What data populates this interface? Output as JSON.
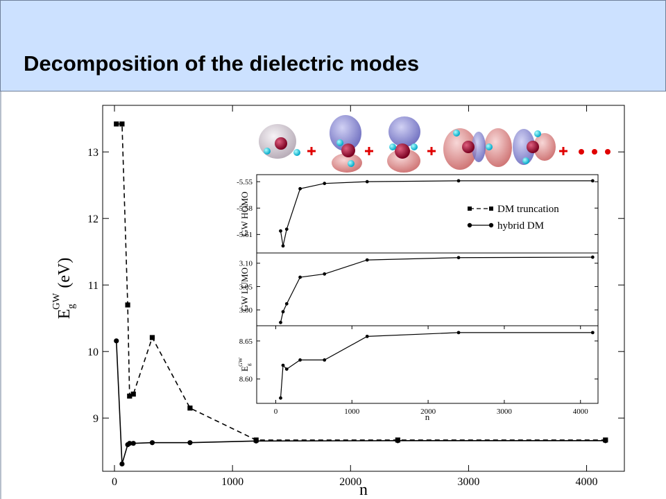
{
  "header": {
    "title": "Decomposition of the dielectric modes"
  },
  "chart_data": [
    {
      "type": "line",
      "xlabel": "n",
      "ylabel": {
        "text": "E",
        "sub": "g",
        "sup": "GW",
        "unit": "(eV)"
      },
      "x": [
        16,
        64,
        112,
        128,
        160,
        320,
        640,
        1200,
        2400,
        4160
      ],
      "xlim": [
        -100,
        4320
      ],
      "xticks": [
        0,
        1000,
        2000,
        3000,
        4000
      ],
      "ylim": [
        8.2,
        13.7
      ],
      "yticks": [
        9,
        10,
        11,
        12,
        13
      ],
      "series": [
        {
          "name": "DM truncation",
          "color": "#000000",
          "line_style": "dashed",
          "marker": "square",
          "values": [
            13.42,
            13.42,
            10.7,
            9.33,
            9.36,
            10.21,
            9.15,
            8.67,
            8.67,
            8.67
          ]
        },
        {
          "name": "hybrid DM",
          "color": "#000000",
          "line_style": "solid",
          "marker": "circle",
          "values": [
            10.16,
            8.31,
            8.6,
            8.62,
            8.62,
            8.63,
            8.63,
            8.655,
            8.66,
            8.66
          ]
        }
      ]
    },
    {
      "type": "line",
      "ylabel": {
        "text": "GW HOMO"
      },
      "x": [
        64,
        96,
        144,
        320,
        640,
        1200,
        2400,
        4160
      ],
      "xlim": [
        -250,
        4230
      ],
      "ylim": [
        -5.631,
        -5.542
      ],
      "yticks": [
        {
          "value": -5.61,
          "label": "-5.61"
        },
        {
          "value": -5.58,
          "label": "-5.58"
        },
        {
          "value": -5.55,
          "label": "-5.55"
        }
      ],
      "series": [
        {
          "color": "#000000",
          "line_style": "solid",
          "marker": "circle",
          "values": [
            -5.606,
            -5.623,
            -5.604,
            -5.558,
            -5.552,
            -5.55,
            -5.549,
            -5.549
          ]
        }
      ]
    },
    {
      "type": "line",
      "ylabel": {
        "text": "GW LUMO"
      },
      "x": [
        64,
        96,
        144,
        320,
        640,
        1200,
        2400,
        4160
      ],
      "xlim": [
        -250,
        4230
      ],
      "ylim": [
        2.966,
        3.122
      ],
      "yticks": [
        {
          "value": 3.0,
          "label": "3.00"
        },
        3.05,
        {
          "value": 3.1,
          "label": "3.10"
        }
      ],
      "series": [
        {
          "color": "#000000",
          "line_style": "solid",
          "marker": "circle",
          "values": [
            2.973,
            2.996,
            3.013,
            3.07,
            3.077,
            3.107,
            3.112,
            3.113
          ]
        }
      ]
    },
    {
      "type": "line",
      "xlabel": "n",
      "ylabel": {
        "text": "E",
        "sub": "g",
        "sup": "GW"
      },
      "x": [
        64,
        96,
        144,
        320,
        640,
        1200,
        2400,
        4160
      ],
      "xlim": [
        -250,
        4230
      ],
      "xticks": [
        0,
        1000,
        2000,
        3000,
        4000
      ],
      "ylim": [
        8.568,
        8.67
      ],
      "yticks": [
        {
          "value": 8.6,
          "label": "8.60"
        },
        8.65
      ],
      "series": [
        {
          "color": "#000000",
          "line_style": "solid",
          "marker": "circle",
          "values": [
            8.575,
            8.618,
            8.613,
            8.625,
            8.625,
            8.656,
            8.661,
            8.661
          ]
        }
      ]
    }
  ]
}
